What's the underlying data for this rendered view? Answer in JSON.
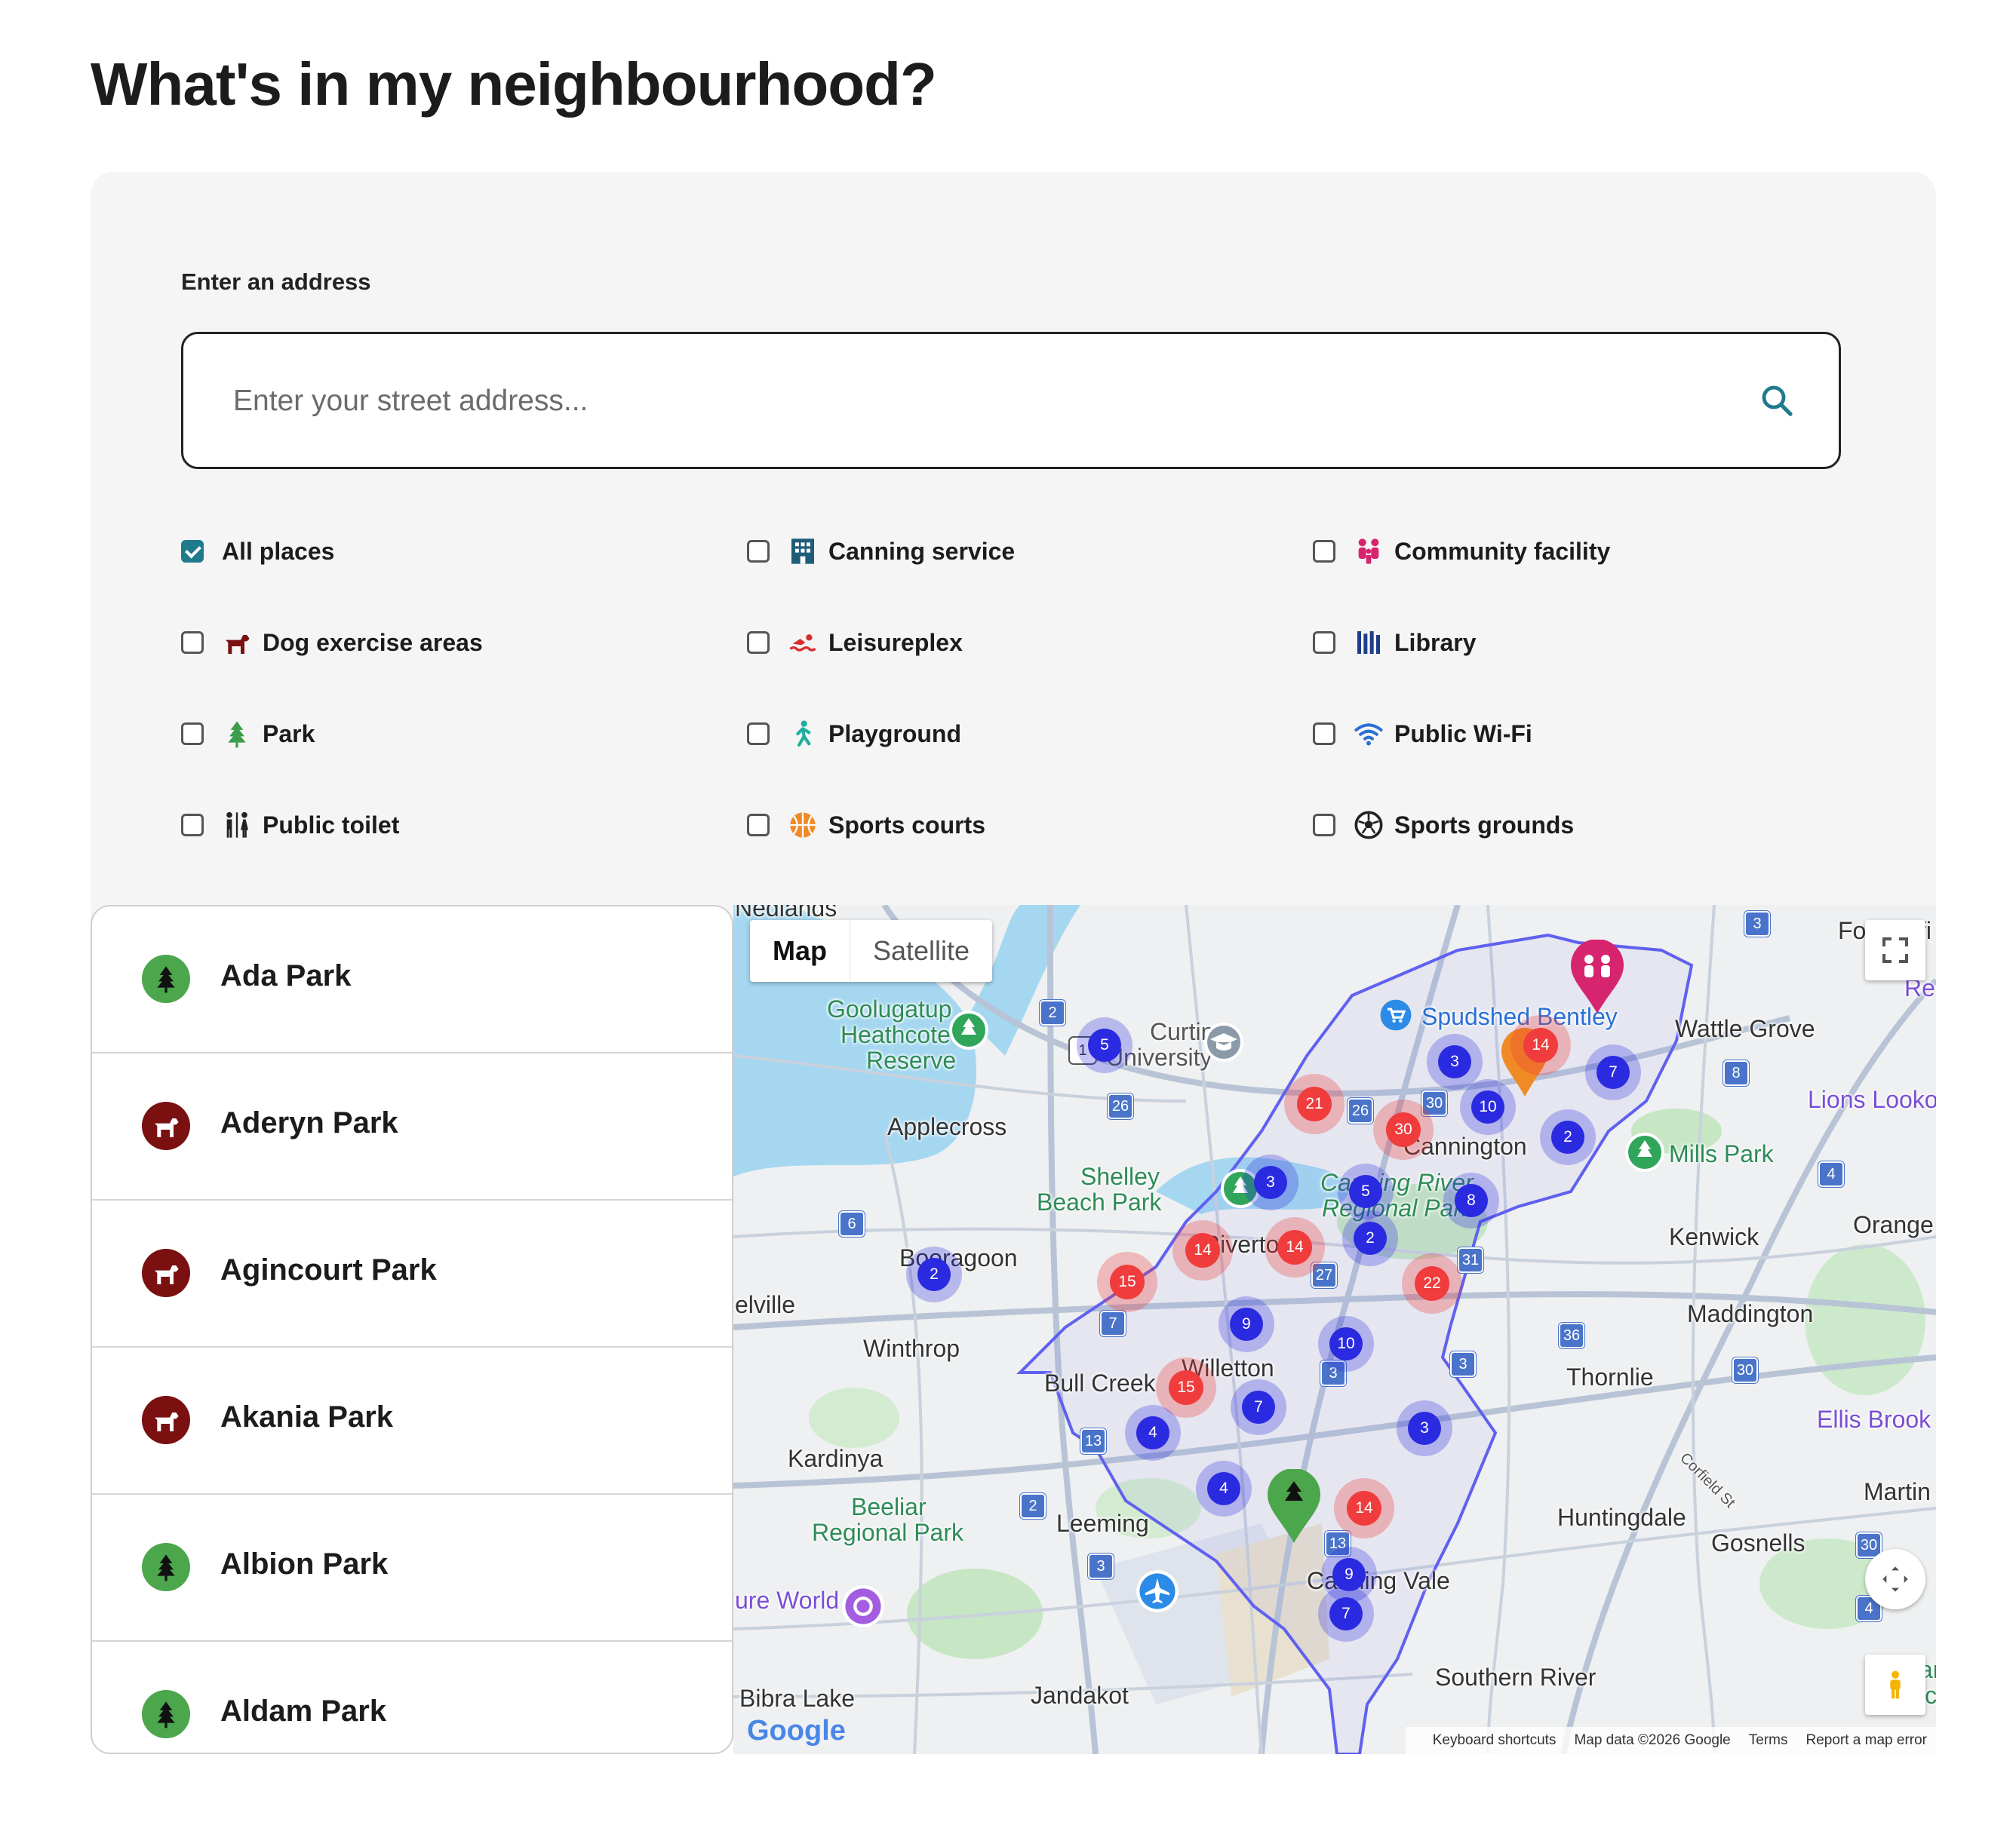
{
  "page": {
    "title": "What's in my neighbourhood?"
  },
  "search": {
    "label": "Enter an address",
    "placeholder": "Enter your street address...",
    "value": ""
  },
  "filters": [
    {
      "label": "All places",
      "checked": true
    },
    {
      "label": "Canning service",
      "checked": false
    },
    {
      "label": "Community facility",
      "checked": false
    },
    {
      "label": "Dog exercise areas",
      "checked": false
    },
    {
      "label": "Leisureplex",
      "checked": false
    },
    {
      "label": "Library",
      "checked": false
    },
    {
      "label": "Park",
      "checked": false
    },
    {
      "label": "Playground",
      "checked": false
    },
    {
      "label": "Public Wi-Fi",
      "checked": false
    },
    {
      "label": "Public toilet",
      "checked": false
    },
    {
      "label": "Sports courts",
      "checked": false
    },
    {
      "label": "Sports grounds",
      "checked": false
    }
  ],
  "places": [
    {
      "name": "Ada Park",
      "type": "park"
    },
    {
      "name": "Aderyn Park",
      "type": "dog"
    },
    {
      "name": "Agincourt Park",
      "type": "dog"
    },
    {
      "name": "Akania Park",
      "type": "dog"
    },
    {
      "name": "Albion Park",
      "type": "park"
    },
    {
      "name": "Aldam Park",
      "type": "park"
    }
  ],
  "map": {
    "type_map": "Map",
    "type_satellite": "Satellite",
    "labels": [
      "Nedlands",
      "Goolugatup",
      "Heathcote",
      "Reserve",
      "Curtin",
      "University",
      "Spudshed Bentley",
      "Wattle Grove",
      "Applecross",
      "Cannington",
      "Mills Park",
      "Shelley",
      "Beach Park",
      "Canning River",
      "Regional Park",
      "Kenwick",
      "Orange",
      "Booragoon",
      "Riverton",
      "elville",
      "Winthrop",
      "Maddington",
      "Bull Creek",
      "Willetton",
      "Thornlie",
      "Ellis Brook",
      "Kardinya",
      "Beeliar",
      "Regional Park",
      "Leeming",
      "Martin",
      "Huntingdale",
      "Gosnells",
      "Canning Vale",
      "ure World",
      "Southern River",
      "Bibra Lake",
      "Jandakot",
      "Lions Looko",
      "Fo",
      "fi",
      "Re",
      "Corfield St",
      "ar",
      "ic"
    ],
    "clusters": [
      {
        "count": "5",
        "color": "blue"
      },
      {
        "count": "3",
        "color": "blue"
      },
      {
        "count": "14",
        "color": "red"
      },
      {
        "count": "7",
        "color": "blue"
      },
      {
        "count": "21",
        "color": "red"
      },
      {
        "count": "10",
        "color": "blue"
      },
      {
        "count": "30",
        "color": "red"
      },
      {
        "count": "2",
        "color": "blue"
      },
      {
        "count": "3",
        "color": "blue"
      },
      {
        "count": "5",
        "color": "blue"
      },
      {
        "count": "8",
        "color": "blue"
      },
      {
        "count": "14",
        "color": "red"
      },
      {
        "count": "14",
        "color": "red"
      },
      {
        "count": "2",
        "color": "blue"
      },
      {
        "count": "2",
        "color": "blue"
      },
      {
        "count": "15",
        "color": "red"
      },
      {
        "count": "22",
        "color": "red"
      },
      {
        "count": "9",
        "color": "blue"
      },
      {
        "count": "10",
        "color": "blue"
      },
      {
        "count": "15",
        "color": "red"
      },
      {
        "count": "7",
        "color": "blue"
      },
      {
        "count": "4",
        "color": "blue"
      },
      {
        "count": "3",
        "color": "blue"
      },
      {
        "count": "4",
        "color": "blue"
      },
      {
        "count": "14",
        "color": "red"
      },
      {
        "count": "9",
        "color": "blue"
      },
      {
        "count": "7",
        "color": "blue"
      }
    ],
    "shields": [
      "3",
      "2",
      "1",
      "26",
      "30",
      "26",
      "8",
      "6",
      "4",
      "31",
      "27",
      "7",
      "36",
      "30",
      "3",
      "3",
      "13",
      "2",
      "13",
      "3",
      "30",
      "4"
    ],
    "footer": {
      "shortcuts": "Keyboard shortcuts",
      "data": "Map data ©2026 Google",
      "terms": "Terms",
      "report": "Report a map error"
    },
    "logo": "Google",
    "colors": {
      "blue_cluster": "#2a2ae0",
      "red_cluster": "#f03c3c",
      "park_green": "#4ca64c",
      "dog_maroon": "#7a1010",
      "boundary": "#5b5bf0"
    }
  }
}
